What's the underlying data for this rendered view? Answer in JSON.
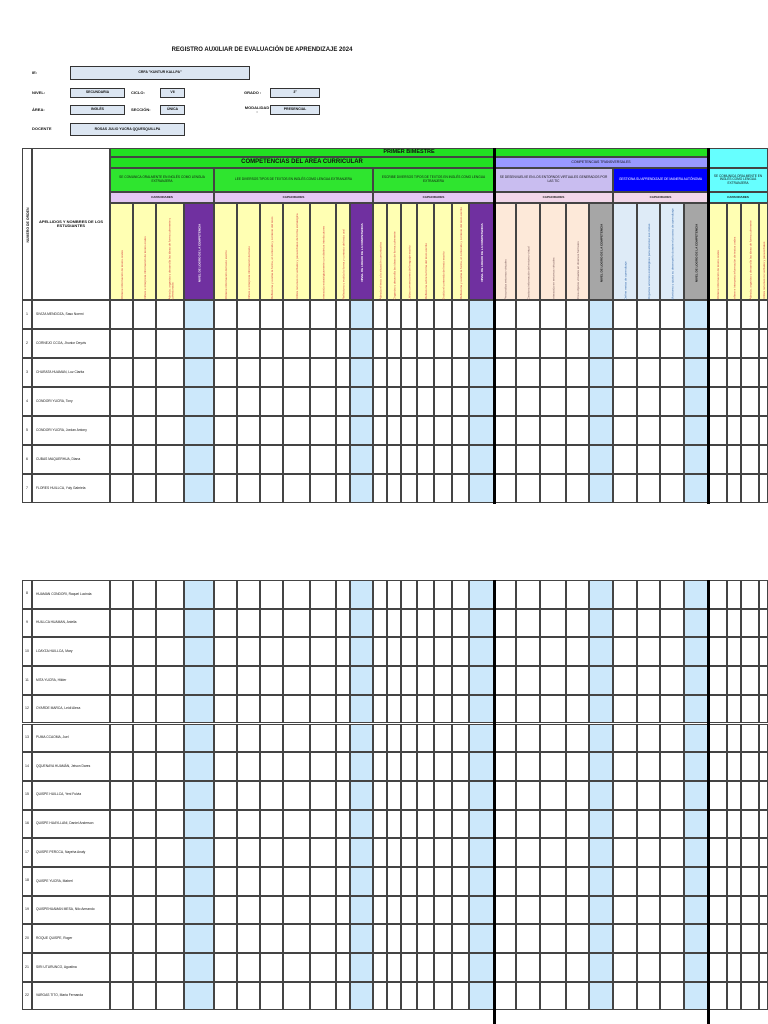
{
  "header": {
    "title": "REGISTRO AUXILIAR DE EVALUACIÓN DE APRENDIZAJE 2024"
  },
  "info": {
    "ie_label": "IE:",
    "ie": "CRFA \"KUNTUR KALLPA\"",
    "nivel_label": "NIVEL:",
    "nivel": "SECUNDARIA",
    "ciclo_label": "CICLO:",
    "ciclo": "VII",
    "grado_label": "GRADO :",
    "grado": "3°",
    "area_label": "ÁREA:",
    "area": "INGLÉS",
    "seccion_label": "SECCIÓN:",
    "seccion": "ÚNICA",
    "modalidad_label": "MODALIDAD :",
    "modalidad": "PRESENCIAL",
    "docente_label": "DOCENTE",
    "docente": "ROSAS JULIO YUCRA QQUESQUILLPA"
  },
  "table": {
    "order_label": "NUMERO DE ORDEN",
    "names_label": "APELLIDOS Y NOMBRES DE LOS ESTUDIANTES",
    "period": "PRIMER BIMESTRE",
    "curricular": "COMPETENCIAS DEL AREA CURRICULAR",
    "transversal": "COMPETENCIAS TRANSVERSALES",
    "competencies": [
      {
        "name": "SE COMUNICA ORALMENTE EN INGLÉS COMO LENGUA EXTRANJERA",
        "capacities_label": "CAPACIDADES",
        "capacities": [
          "Obtiene información de textos orales",
          "Infiere e interpreta información de textos orales",
          "Adecúa, organiza y desarrolla las ideas de forma coherente y cohesionada"
        ],
        "level": "NIVEL DE LOGRO DE LA COMPETENCIA"
      },
      {
        "name": "LEE DIVERSOS TIPOS DE TEXTOS EN INGLÉS COMO LENGUA EXTRANJERA",
        "capacities_label": "CAPACIDADES",
        "capacities": [
          "Obtiene información del texto escrito",
          "Infiere e interpreta información del texto",
          "Reflexiona y evalúa la forma, el contenido y contexto del texto",
          "Utiliza recursos no verbales y paraverbales de forma estratégica",
          "Interactúa estratégicamente con distintos interlocutores",
          "Reflexiona y evalúa la forma y contexto del texto oral"
        ],
        "level": "NIVEL DE LOGRO DE LA COMPETENCIA"
      },
      {
        "name": "ESCRIBE DIVERSOS TIPOS DE TEXTOS EN INGLÉS COMO LENGUA EXTRANJERA",
        "capacities_label": "CAPACIDADES",
        "capacities": [
          "Adecúa el texto a la situación comunicativa",
          "Organiza y desarrolla las ideas de forma coherente",
          "Utiliza convenciones del lenguaje escrito",
          "Reflexiona sobre la forma del texto escrito",
          "Evalúa el contenido del texto escrito",
          "Reflexiona y evalúa la forma, el contenido y contexto del texto escrito"
        ],
        "level": "NIVEL DE LOGRO DE LA COMPETENCIA"
      },
      {
        "name": "SE DESENVUELVE EN LOS ENTORNOS VIRTUALES GENERADOS POR LAS TIC",
        "capacities_label": "CAPACIDADES",
        "capacities": [
          "Personaliza entornos virtuales",
          "Gestiona información del entorno virtual",
          "Interactúa en entornos virtuales",
          "Crea objetos virtuales en diversos formatos"
        ],
        "level": "NIVEL DE LOGRO DE LA COMPETENCIA"
      },
      {
        "name": "GESTIONA SU APRENDIZAJE DE MANERA AUTÓNOMA",
        "capacities_label": "CAPACIDADES",
        "capacities": [
          "Define metas de aprendizaje",
          "Organiza acciones estratégicas para alcanzar sus metas",
          "Monitorea y ajusta su desempeño durante el proceso de aprendizaje"
        ],
        "level": "NIVEL DE LOGRO DE LA COMPETENCIA"
      },
      {
        "name": "SE COMUNICA ORALMENTE EN INGLÉS COMO LENGUA EXTRANJERA",
        "capacities_label": "CAPACIDADES",
        "capacities": [
          "Obtiene información de textos orales",
          "Infiere e interpreta información de textos orales",
          "Adecúa, organiza y desarrolla las ideas de forma coherente",
          "Utiliza recursos no verbales y paraverbales"
        ]
      }
    ],
    "students": [
      {
        "number": 1,
        "name": "SIVIZA MENDOZA, Saso Noemi"
      },
      {
        "number": 2,
        "name": "CORNEJO CCOA, Jhunior Deyvis"
      },
      {
        "number": 3,
        "name": "CHURATA HUAMAN, Luz Clarita"
      },
      {
        "number": 4,
        "name": "CONDORI YUCRA, Tony"
      },
      {
        "number": 5,
        "name": "CONDORI YUCRA, Jordan Antony"
      },
      {
        "number": 6,
        "name": "CUBAS MAQUERHUA, Diana"
      },
      {
        "number": 7,
        "name": "FLORES HUILLCA, Yuly Gabriela"
      },
      {
        "number": 8,
        "name": "HUAMAN CONDORI, Raquel Lucinda"
      },
      {
        "number": 9,
        "name": "HUILLCA HUAMAN, Aniella"
      },
      {
        "number": 10,
        "name": "LOAYZA HUILLCA, Mary"
      },
      {
        "number": 11,
        "name": "MITA YUCRA, Hilder"
      },
      {
        "number": 12,
        "name": "OYARDE MARCA, Leidi Alexa"
      },
      {
        "number": 13,
        "name": "PUMA CCAOMA, Juel"
      },
      {
        "number": 14,
        "name": "QQUENAYA HUAMÁN, Jeison Dares"
      },
      {
        "number": 15,
        "name": "QUISPE HUILLCA, Yeni Fulvia"
      },
      {
        "number": 16,
        "name": "QUISPE HUAYLLANI, Daniel Anderson"
      },
      {
        "number": 17,
        "name": "QUISPE PERCCA, Nayeha Analy"
      },
      {
        "number": 18,
        "name": "QUISPE YUCRA, Maberl"
      },
      {
        "number": 19,
        "name": "QUISPEHUAMAN MESA, Nilo Armando"
      },
      {
        "number": 20,
        "name": "ROQUE QUISPE, Roger"
      },
      {
        "number": 21,
        "name": "SIRI UTURUNCO, Agustina"
      },
      {
        "number": 22,
        "name": "VARGAS TITO, Maria Fernanda"
      }
    ]
  }
}
